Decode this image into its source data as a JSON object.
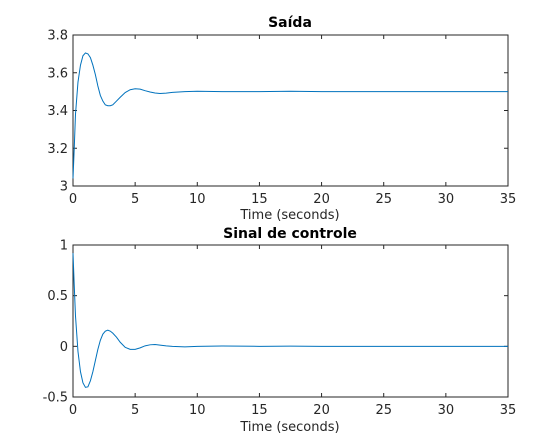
{
  "chart_data": [
    {
      "type": "line",
      "title": "Saída",
      "xlabel": "Time (seconds)",
      "ylabel": "",
      "xlim": [
        0,
        35
      ],
      "ylim": [
        3,
        3.8
      ],
      "xticks": [
        0,
        5,
        10,
        15,
        20,
        25,
        30,
        35
      ],
      "yticks": [
        3,
        3.2,
        3.4,
        3.6,
        3.8
      ],
      "xtick_labels": [
        "0",
        "5",
        "10",
        "15",
        "20",
        "25",
        "30",
        "35"
      ],
      "ytick_labels": [
        "3",
        "3.2",
        "3.4",
        "3.6",
        "3.8"
      ],
      "grid": false,
      "series": [
        {
          "color": "#0072bd",
          "x": [
            0,
            0.1,
            0.2,
            0.4,
            0.6,
            0.8,
            1.0,
            1.2,
            1.4,
            1.6,
            1.8,
            2.0,
            2.2,
            2.4,
            2.6,
            2.8,
            3.0,
            3.2,
            3.5,
            3.8,
            4.2,
            4.6,
            5.0,
            5.4,
            5.8,
            6.2,
            6.6,
            7.0,
            7.5,
            8.0,
            9.0,
            10.0,
            12.0,
            15.0,
            17.5,
            20.0,
            25.0,
            30.0,
            35.0
          ],
          "y": [
            3.04,
            3.2,
            3.38,
            3.55,
            3.64,
            3.69,
            3.705,
            3.7,
            3.68,
            3.64,
            3.59,
            3.53,
            3.48,
            3.45,
            3.43,
            3.425,
            3.425,
            3.43,
            3.45,
            3.47,
            3.495,
            3.51,
            3.515,
            3.513,
            3.505,
            3.498,
            3.493,
            3.49,
            3.492,
            3.496,
            3.5,
            3.502,
            3.5,
            3.5,
            3.502,
            3.5,
            3.5,
            3.5,
            3.5
          ]
        }
      ]
    },
    {
      "type": "line",
      "title": "Sinal de controle",
      "xlabel": "Time (seconds)",
      "ylabel": "",
      "xlim": [
        0,
        35
      ],
      "ylim": [
        -0.5,
        1
      ],
      "xticks": [
        0,
        5,
        10,
        15,
        20,
        25,
        30,
        35
      ],
      "yticks": [
        -0.5,
        0,
        0.5,
        1
      ],
      "xtick_labels": [
        "0",
        "5",
        "10",
        "15",
        "20",
        "25",
        "30",
        "35"
      ],
      "ytick_labels": [
        "-0.5",
        "0",
        "0.5",
        "1"
      ],
      "grid": false,
      "series": [
        {
          "color": "#0072bd",
          "x": [
            0,
            0.1,
            0.2,
            0.4,
            0.6,
            0.8,
            1.0,
            1.2,
            1.4,
            1.6,
            1.8,
            2.0,
            2.2,
            2.4,
            2.6,
            2.8,
            3.0,
            3.2,
            3.5,
            3.8,
            4.2,
            4.6,
            5.0,
            5.4,
            5.8,
            6.2,
            6.6,
            7.0,
            7.5,
            8.0,
            9.0,
            10.0,
            12.0,
            15.0,
            17.5,
            20.0,
            25.0,
            30.0,
            35.0
          ],
          "y": [
            0.92,
            0.6,
            0.3,
            -0.05,
            -0.25,
            -0.36,
            -0.405,
            -0.4,
            -0.34,
            -0.25,
            -0.14,
            -0.03,
            0.06,
            0.12,
            0.15,
            0.16,
            0.15,
            0.13,
            0.09,
            0.04,
            -0.01,
            -0.03,
            -0.03,
            -0.015,
            0.005,
            0.015,
            0.018,
            0.012,
            0.005,
            0.0,
            -0.005,
            0.0,
            0.003,
            0.0,
            0.002,
            0.0,
            0.0,
            0.0,
            0.0
          ]
        }
      ]
    }
  ]
}
